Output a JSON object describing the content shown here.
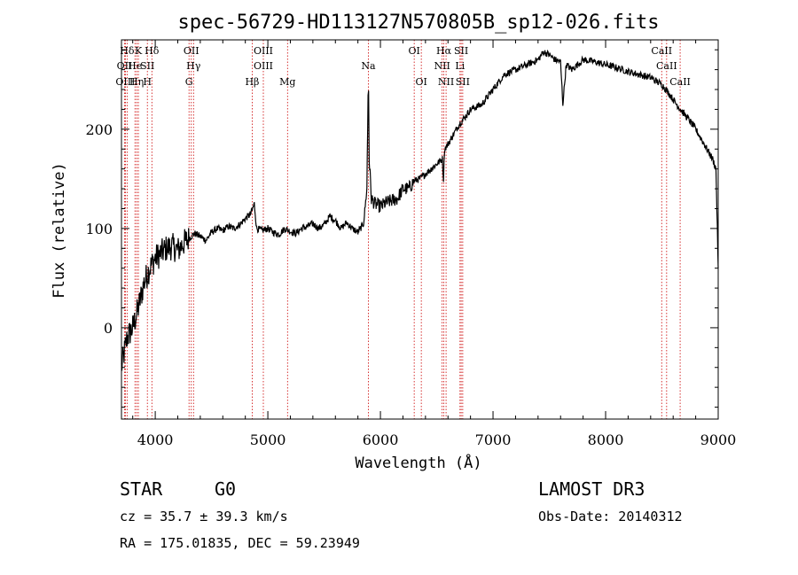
{
  "chart_data": {
    "type": "line",
    "title": "spec-56729-HD113127N570805B_sp12-026.fits",
    "xlabel": "Wavelength (Å)",
    "ylabel": "Flux (relative)",
    "xlim": [
      3700,
      9000
    ],
    "ylim": [
      -92,
      290
    ],
    "xticks": [
      4000,
      5000,
      6000,
      7000,
      8000,
      9000
    ],
    "yticks": [
      0,
      100,
      200
    ],
    "series": [
      {
        "name": "flux",
        "x": [
          3700,
          3750,
          3800,
          3850,
          3900,
          3950,
          4000,
          4050,
          4100,
          4150,
          4200,
          4250,
          4300,
          4350,
          4400,
          4450,
          4500,
          4550,
          4600,
          4650,
          4700,
          4750,
          4800,
          4850,
          4880,
          4900,
          4950,
          5000,
          5050,
          5100,
          5150,
          5200,
          5250,
          5300,
          5350,
          5400,
          5450,
          5500,
          5550,
          5600,
          5650,
          5700,
          5750,
          5800,
          5850,
          5880,
          5890,
          5895,
          5900,
          5920,
          5950,
          6000,
          6050,
          6100,
          6150,
          6200,
          6250,
          6300,
          6350,
          6400,
          6450,
          6500,
          6550,
          6560,
          6565,
          6570,
          6600,
          6650,
          6700,
          6750,
          6800,
          6900,
          7000,
          7100,
          7200,
          7300,
          7400,
          7450,
          7500,
          7550,
          7600,
          7620,
          7650,
          7700,
          7800,
          7900,
          8000,
          8100,
          8200,
          8300,
          8400,
          8500,
          8550,
          8600,
          8650,
          8700,
          8750,
          8800,
          8850,
          8900,
          8950,
          8980,
          9000
        ],
        "y": [
          -40,
          -10,
          0,
          20,
          45,
          60,
          70,
          75,
          80,
          82,
          78,
          85,
          90,
          95,
          92,
          88,
          96,
          100,
          98,
          102,
          100,
          104,
          110,
          115,
          125,
          100,
          98,
          100,
          96,
          94,
          100,
          97,
          95,
          100,
          102,
          105,
          100,
          104,
          112,
          108,
          100,
          106,
          100,
          96,
          105,
          140,
          235,
          240,
          170,
          130,
          125,
          122,
          126,
          128,
          130,
          140,
          140,
          148,
          150,
          155,
          160,
          165,
          170,
          150,
          165,
          180,
          185,
          195,
          205,
          212,
          220,
          225,
          240,
          255,
          260,
          265,
          270,
          278,
          275,
          270,
          268,
          225,
          265,
          260,
          270,
          268,
          265,
          262,
          258,
          255,
          252,
          245,
          238,
          230,
          222,
          215,
          208,
          200,
          190,
          180,
          170,
          160,
          60
        ]
      }
    ],
    "spectral_lines": [
      {
        "label": "Hδ",
        "wave": 3750,
        "row": 1
      },
      {
        "label": "K",
        "wave": 3850,
        "row": 1
      },
      {
        "label": "Hδ",
        "wave": 3970,
        "row": 1
      },
      {
        "label": "OII",
        "wave": 4320,
        "row": 1
      },
      {
        "label": "OIII",
        "wave": 4960,
        "row": 1
      },
      {
        "label": "OI",
        "wave": 6300,
        "row": 1
      },
      {
        "label": "Hα",
        "wave": 6563,
        "row": 1
      },
      {
        "label": "SII",
        "wave": 6717,
        "row": 1
      },
      {
        "label": "CaII",
        "wave": 8498,
        "row": 1
      },
      {
        "label": "OII",
        "wave": 3727,
        "row": 2
      },
      {
        "label": "He",
        "wave": 3820,
        "row": 2
      },
      {
        "label": "SII",
        "wave": 3930,
        "row": 2
      },
      {
        "label": "Hγ",
        "wave": 4340,
        "row": 2
      },
      {
        "label": "OIII",
        "wave": 4960,
        "row": 2
      },
      {
        "label": "Na",
        "wave": 5893,
        "row": 2
      },
      {
        "label": "NII",
        "wave": 6548,
        "row": 2
      },
      {
        "label": "Li",
        "wave": 6707,
        "row": 2
      },
      {
        "label": "CaII",
        "wave": 8542,
        "row": 2
      },
      {
        "label": "OIII",
        "wave": 3735,
        "row": 3
      },
      {
        "label": "Hη",
        "wave": 3835,
        "row": 3
      },
      {
        "label": "H",
        "wave": 3930,
        "row": 3
      },
      {
        "label": "G",
        "wave": 4300,
        "row": 3
      },
      {
        "label": "Hβ",
        "wave": 4861,
        "row": 3
      },
      {
        "label": "Mg",
        "wave": 5175,
        "row": 3
      },
      {
        "label": "OI",
        "wave": 6363,
        "row": 3
      },
      {
        "label": "NII",
        "wave": 6583,
        "row": 3
      },
      {
        "label": "SII",
        "wave": 6731,
        "row": 3
      },
      {
        "label": "CaII",
        "wave": 8662,
        "row": 3
      }
    ]
  },
  "info": {
    "object_type": "STAR",
    "subclass": "G0",
    "survey": "LAMOST DR3",
    "cz": "cz = 35.7 ± 39.3 km/s",
    "obs_date": "Obs-Date: 20140312",
    "coords": "RA = 175.01835, DEC =  59.23949"
  },
  "colors": {
    "spectrum": "#000000",
    "line_marker": "#cc0000"
  }
}
